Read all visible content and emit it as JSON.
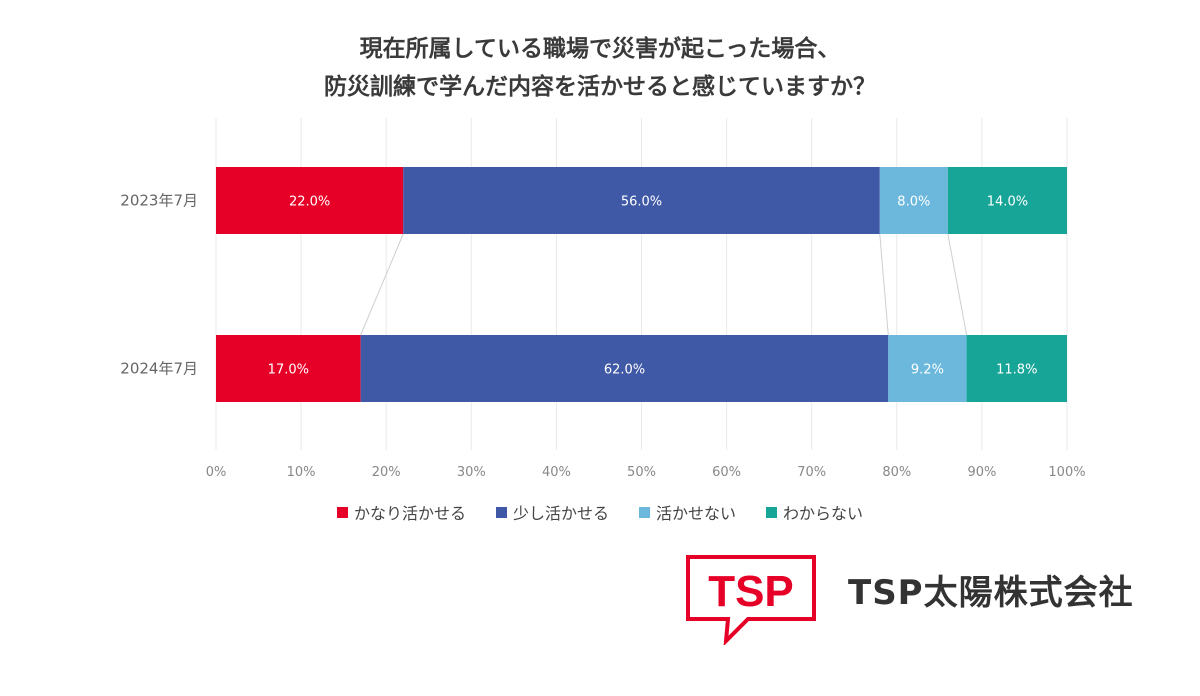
{
  "chart_data": {
    "type": "bar",
    "orientation": "horizontal",
    "stacked": true,
    "percent": true,
    "title": [
      "現在所属している職場で災害が起こった場合、",
      "防災訓練で学んだ内容を活かせると感じていますか？"
    ],
    "categories": [
      "2023年7月",
      "2024年7月"
    ],
    "series": [
      {
        "name": "かなり活かせる",
        "color": "#e60027",
        "values": [
          22.0,
          17.0
        ],
        "labels": [
          "22.0%",
          "17.0%"
        ]
      },
      {
        "name": "少し活かせる",
        "color": "#3f59a6",
        "values": [
          56.0,
          62.0
        ],
        "labels": [
          "56.0%",
          "62.0%"
        ]
      },
      {
        "name": "活かせない",
        "color": "#6bb8dc",
        "values": [
          8.0,
          9.2
        ],
        "labels": [
          "8.0%",
          "9.2%"
        ]
      },
      {
        "name": "わからない",
        "color": "#17a597",
        "values": [
          14.0,
          11.8
        ],
        "labels": [
          "14.0%",
          "11.8%"
        ]
      }
    ],
    "xlim": [
      0,
      100
    ],
    "xticks": [
      "0%",
      "10%",
      "20%",
      "30%",
      "40%",
      "50%",
      "60%",
      "70%",
      "80%",
      "90%",
      "100%"
    ],
    "grid": true,
    "legend_position": "bottom"
  },
  "logo": {
    "mark_text": "TSP",
    "company_name": "TSP太陽株式会社",
    "color": "#e60027"
  }
}
